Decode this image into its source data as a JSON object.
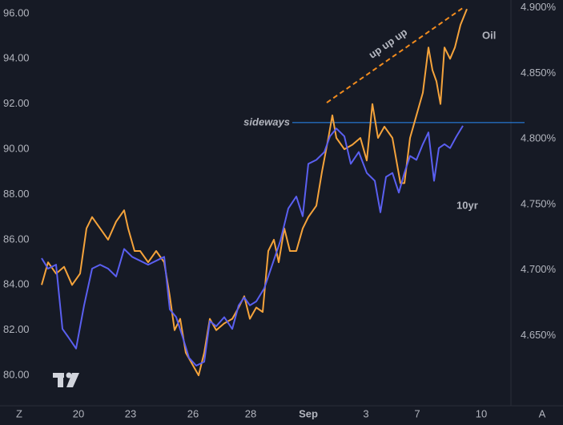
{
  "chart_data": {
    "type": "line",
    "background": "#161a25",
    "grid": false,
    "xlim": [
      0,
      660
    ],
    "xticks": [
      {
        "value": 98,
        "label": "20"
      },
      {
        "value": 163,
        "label": "23"
      },
      {
        "value": 241,
        "label": "26"
      },
      {
        "value": 313,
        "label": "28"
      },
      {
        "value": 385,
        "label": "Sep"
      },
      {
        "value": 457,
        "label": "3"
      },
      {
        "value": 521,
        "label": "7"
      },
      {
        "value": 601,
        "label": "10"
      }
    ],
    "ylim": [
      78.69,
      96.6
    ],
    "yticks": [
      {
        "value": 80,
        "label": "80.00"
      },
      {
        "value": 82,
        "label": "82.00"
      },
      {
        "value": 84,
        "label": "84.00"
      },
      {
        "value": 86,
        "label": "86.00"
      },
      {
        "value": 88,
        "label": "88.00"
      },
      {
        "value": 90,
        "label": "90.00"
      },
      {
        "value": 92,
        "label": "92.00"
      },
      {
        "value": 94,
        "label": "94.00"
      },
      {
        "value": 96,
        "label": "96.00"
      }
    ],
    "y2lim": [
      4.597,
      4.906
    ],
    "y2ticks": [
      {
        "value": 4.65,
        "label": "4.650%"
      },
      {
        "value": 4.7,
        "label": "4.700%"
      },
      {
        "value": 4.75,
        "label": "4.750%"
      },
      {
        "value": 4.8,
        "label": "4.800%"
      },
      {
        "value": 4.85,
        "label": "4.850%"
      },
      {
        "value": 4.9,
        "label": "4.900%"
      }
    ],
    "series": [
      {
        "name": "Oil",
        "color": "#f5a33b",
        "axis": "y",
        "x": [
          52,
          60,
          70,
          80,
          90,
          100,
          108,
          115,
          125,
          135,
          145,
          155,
          160,
          168,
          175,
          185,
          195,
          205,
          212,
          218,
          225,
          232,
          240,
          248,
          255,
          262,
          270,
          280,
          290,
          298,
          305,
          312,
          320,
          328,
          335,
          342,
          348,
          355,
          362,
          370,
          378,
          385,
          395,
          402,
          410,
          415,
          420,
          430,
          440,
          450,
          458,
          465,
          472,
          480,
          490,
          500,
          505,
          512,
          520,
          528,
          535,
          540,
          545,
          550,
          555,
          562,
          568,
          575,
          583
        ],
        "values": [
          84.0,
          85.0,
          84.5,
          84.8,
          84.0,
          84.5,
          86.5,
          87.0,
          86.5,
          86.0,
          86.8,
          87.3,
          86.5,
          85.5,
          85.5,
          85.0,
          85.5,
          85.0,
          83.5,
          82.0,
          82.5,
          81.0,
          80.5,
          80.0,
          81.0,
          82.5,
          82.0,
          82.3,
          82.5,
          83.0,
          83.5,
          82.5,
          83.0,
          82.8,
          85.5,
          86.0,
          85.0,
          86.5,
          85.5,
          85.5,
          86.5,
          87.0,
          87.5,
          89.0,
          90.5,
          91.5,
          90.5,
          90.0,
          90.2,
          90.5,
          89.5,
          92.0,
          90.5,
          91.0,
          90.5,
          88.5,
          88.5,
          90.5,
          91.5,
          92.5,
          94.5,
          93.5,
          93.0,
          92.0,
          94.5,
          94.0,
          94.5,
          95.5,
          96.2
        ]
      },
      {
        "name": "10yr",
        "color": "#5a5ff0",
        "axis": "y2",
        "x": [
          52,
          60,
          70,
          78,
          85,
          95,
          105,
          115,
          125,
          135,
          145,
          155,
          165,
          175,
          185,
          195,
          205,
          212,
          220,
          228,
          236,
          245,
          255,
          262,
          270,
          280,
          290,
          298,
          305,
          312,
          320,
          330,
          340,
          350,
          360,
          370,
          378,
          385,
          395,
          405,
          412,
          420,
          430,
          438,
          448,
          458,
          468,
          475,
          482,
          490,
          498,
          505,
          512,
          520,
          528,
          535,
          542,
          548,
          555,
          562,
          570,
          578
        ],
        "values": [
          4.709,
          4.701,
          4.704,
          4.655,
          4.649,
          4.64,
          4.673,
          4.701,
          4.704,
          4.701,
          4.695,
          4.716,
          4.71,
          4.707,
          4.704,
          4.707,
          4.71,
          4.67,
          4.664,
          4.649,
          4.633,
          4.627,
          4.63,
          4.661,
          4.657,
          4.664,
          4.655,
          4.673,
          4.679,
          4.673,
          4.676,
          4.686,
          4.704,
          4.722,
          4.747,
          4.756,
          4.741,
          4.781,
          4.784,
          4.79,
          4.802,
          4.808,
          4.802,
          4.781,
          4.79,
          4.774,
          4.768,
          4.744,
          4.771,
          4.774,
          4.759,
          4.774,
          4.787,
          4.784,
          4.796,
          4.805,
          4.768,
          4.793,
          4.796,
          4.793,
          4.802,
          4.81
        ]
      }
    ],
    "hline": {
      "value": 91.18,
      "x": [
        365,
        655
      ],
      "label": "sideways",
      "color": "#2a8cf8"
    },
    "trendline": {
      "x": [
        408,
        578
      ],
      "values": [
        92.06,
        96.25
      ],
      "label": "up up up",
      "color": "#f28c1e"
    },
    "buttons": [
      "Z",
      "A"
    ]
  }
}
